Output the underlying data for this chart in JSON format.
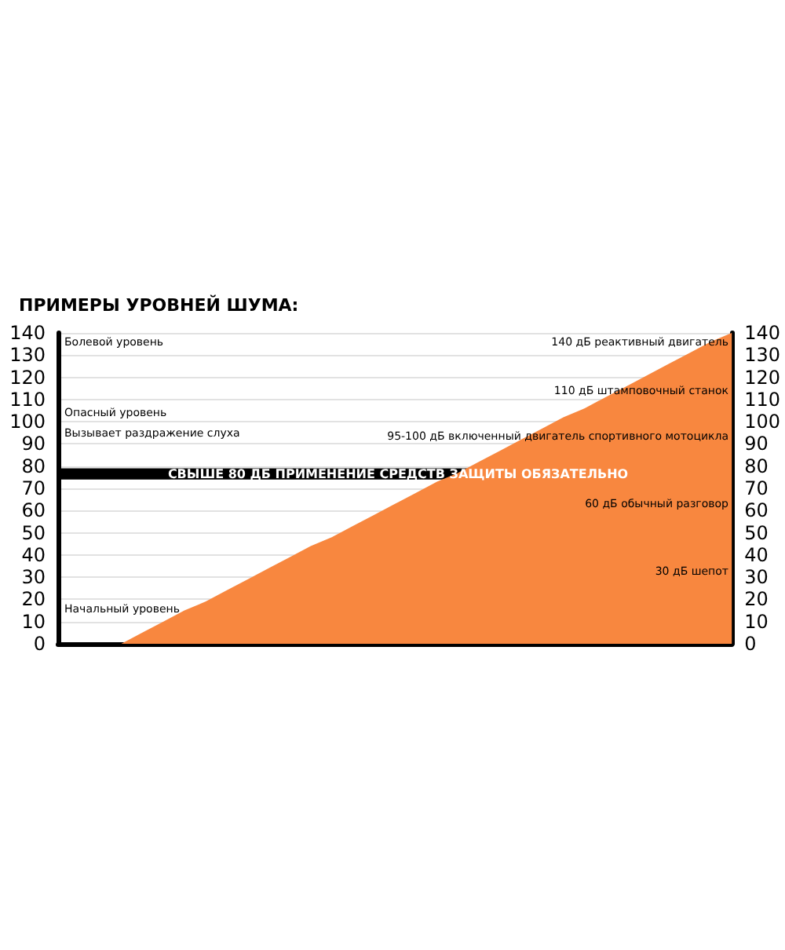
{
  "chart_data": {
    "type": "area",
    "title": "ПРИМЕРЫ УРОВНЕЙ ШУМА:",
    "categories": [
      null,
      null,
      null,
      null,
      null,
      null,
      null,
      null,
      null,
      null,
      null,
      null,
      null,
      null,
      null,
      null,
      null,
      null,
      null,
      null,
      null,
      null,
      null,
      null,
      null,
      null,
      null,
      null,
      null,
      null,
      null,
      null,
      null
    ],
    "series": [
      {
        "color": "#f8873f",
        "values": [
          0,
          0,
          0,
          0,
          5,
          10,
          15,
          19,
          24,
          29,
          34,
          39,
          44,
          48,
          53,
          58,
          63,
          68,
          73,
          77,
          82,
          87,
          92,
          97,
          102,
          106,
          111,
          116,
          121,
          126,
          131,
          136,
          140
        ]
      }
    ],
    "ylim": [
      0,
      140
    ],
    "yticks": [
      0,
      10,
      20,
      30,
      40,
      50,
      60,
      70,
      80,
      90,
      100,
      110,
      120,
      130,
      140
    ],
    "y2lim": [
      0,
      140
    ],
    "y2ticks": [
      0,
      10,
      20,
      30,
      40,
      50,
      60,
      70,
      80,
      90,
      100,
      110,
      120,
      130,
      140
    ],
    "grid": "y",
    "bands": [
      {
        "axis": "y",
        "from": 74,
        "to": 79,
        "label": "СВЫШЕ 80 ДБ ПРИМЕНЕНИЕ СРЕДСТВ ЗАЩИТЫ ОБЯЗАТЕЛЬНО",
        "color": "#000000"
      }
    ],
    "annotations": [
      "Болевой уровень",
      "Опасный уровень",
      "Вызывает раздражение слуха",
      "Начальный уровень",
      "140 дБ реактивный двигатель",
      "110 дБ штамповочный станок",
      "95-100 дБ включенный двигатель спортивного мотоцикла",
      "60 дБ обычный разговор",
      "30 дБ шепот"
    ]
  }
}
